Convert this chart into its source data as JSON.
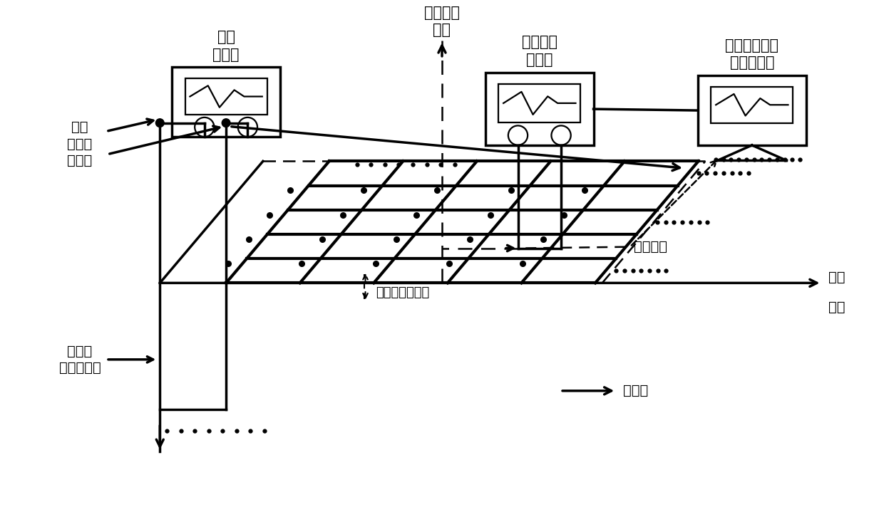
{
  "bg_color": "#ffffff",
  "label_pulsed_source": "脉冲\n电流源",
  "label_acoustic_array": "声传感器\n阵列",
  "label_acoustic_receiver": "声信号接\n收电路",
  "label_data_processor": "数据处理及故\n障诊断单元",
  "label_acoustic_sensor": "声传感器",
  "label_ground_surface": "地面",
  "label_soil": "土壤",
  "label_grounding_net": "接地网",
  "label_down_conductor": "接地网\n接地引下线",
  "label_injection_end": "接地\n引下线\n注入端",
  "label_acoustic_source": "力源激发声信号",
  "font_size": 14,
  "font_family": "SimHei",
  "lw": 2.5,
  "lw_t": 1.8
}
